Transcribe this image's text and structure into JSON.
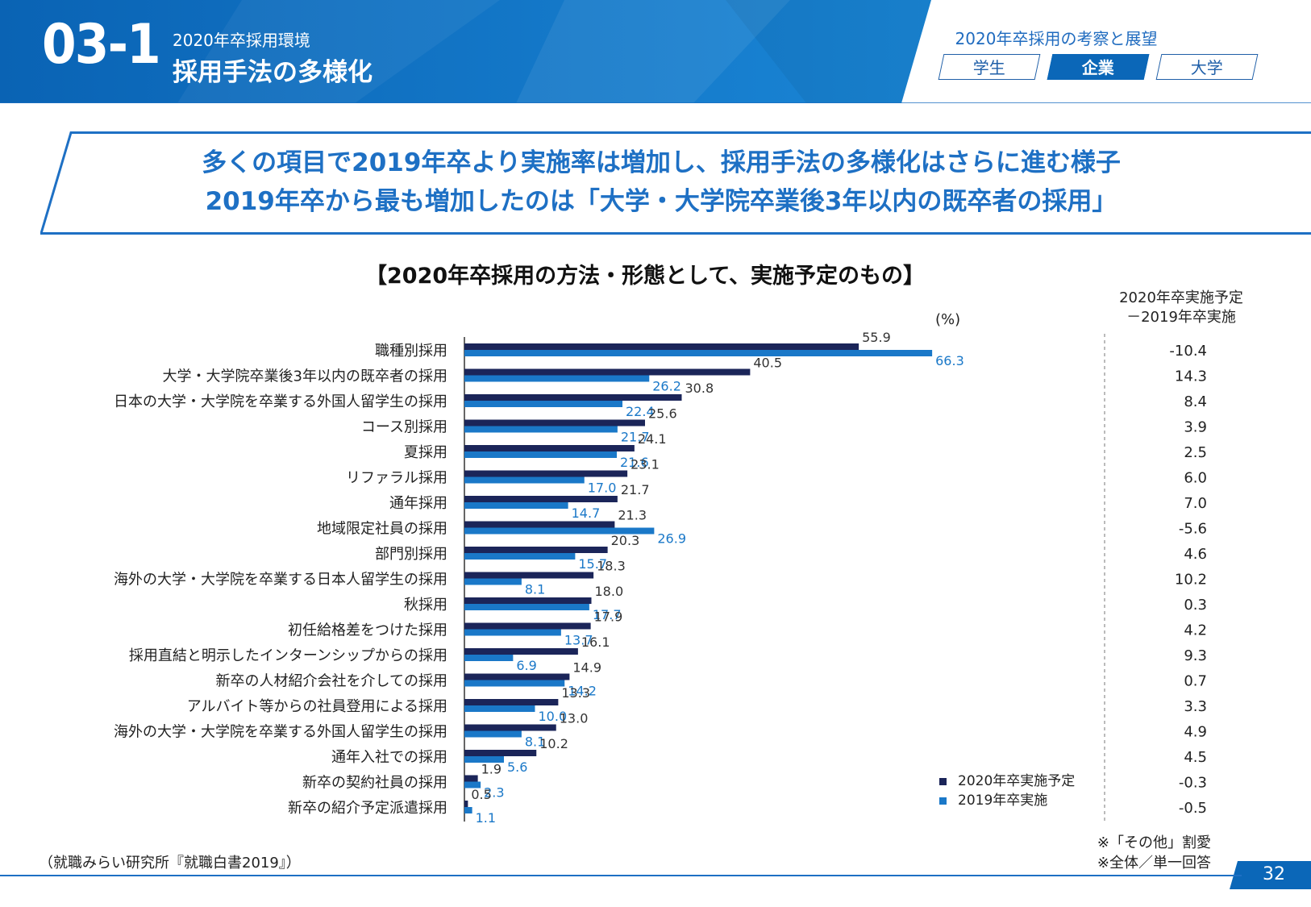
{
  "header": {
    "section_number": "03-1",
    "section_subtitle": "2020年卒採用環境",
    "section_title": "採用手法の多様化",
    "series_title": "2020年卒採用の考察と展望",
    "tabs": [
      {
        "label": "学生",
        "active": false
      },
      {
        "label": "企業",
        "active": true
      },
      {
        "label": "大学",
        "active": false
      }
    ]
  },
  "headline": {
    "line1": "多くの項目で2019年卒より実施率は増加し、採用手法の多様化はさらに進む様子",
    "line2": "2019年卒から最も増加したのは「大学・大学院卒業後3年以内の既卒者の採用」"
  },
  "colors": {
    "series_2020": "#1b2559",
    "series_2019": "#1a78c8",
    "accent": "#1e70c4",
    "banner": "#0b67b8"
  },
  "chart_data": {
    "type": "bar",
    "orientation": "horizontal",
    "title": "【2020年卒採用の方法・形態として、実施予定のもの】",
    "unit": "(%)",
    "diff_header_line1": "2020年卒実施予定",
    "diff_header_line2": "－2019年卒実施",
    "categories": [
      "職種別採用",
      "大学・大学院卒業後3年以内の既卒者の採用",
      "日本の大学・大学院を卒業する外国人留学生の採用",
      "コース別採用",
      "夏採用",
      "リファラル採用",
      "通年採用",
      "地域限定社員の採用",
      "部門別採用",
      "海外の大学・大学院を卒業する日本人留学生の採用",
      "秋採用",
      "初任給格差をつけた採用",
      "採用直結と明示したインターンシップからの採用",
      "新卒の人材紹介会社を介しての採用",
      "アルバイト等からの社員登用による採用",
      "海外の大学・大学院を卒業する外国人留学生の採用",
      "通年入社での採用",
      "新卒の契約社員の採用",
      "新卒の紹介予定派遣採用"
    ],
    "series": [
      {
        "name": "2020年卒実施予定",
        "values": [
          55.9,
          40.5,
          30.8,
          25.6,
          24.1,
          23.1,
          21.7,
          21.3,
          20.3,
          18.3,
          18.0,
          17.9,
          16.1,
          14.9,
          13.3,
          13.0,
          10.2,
          1.9,
          0.5
        ],
        "labels": [
          "55.9",
          "40.5",
          "30.8",
          "25.6",
          "24.1",
          "23.1",
          "21.7",
          "21.3",
          "20.3",
          "18.3",
          "18.0",
          "17.9",
          "16.1",
          "14.9",
          "13.3",
          "13.0",
          "10.2",
          "1.9",
          "0.5"
        ]
      },
      {
        "name": "2019年卒実施",
        "values": [
          66.3,
          26.2,
          22.4,
          21.7,
          21.6,
          17.0,
          14.7,
          26.9,
          15.7,
          8.1,
          17.7,
          13.7,
          6.9,
          14.2,
          10.0,
          8.1,
          5.6,
          2.3,
          1.1
        ],
        "labels": [
          "66.3",
          "26.2",
          "22.4",
          "21.7",
          "21.6",
          "17.0",
          "14.7",
          "26.9",
          "15.7",
          "8.1",
          "17.7",
          "13.7",
          "6.9",
          "14.2",
          "10.0",
          "8.1",
          "5.6",
          "2.3",
          "1.1"
        ]
      }
    ],
    "difference": [
      "-10.4",
      "14.3",
      "8.4",
      "3.9",
      "2.5",
      "6.0",
      "7.0",
      "-5.6",
      "4.6",
      "10.2",
      "0.3",
      "4.2",
      "9.3",
      "0.7",
      "3.3",
      "4.9",
      "4.5",
      "-0.3",
      "-0.5"
    ],
    "legend_position": "bottom-right",
    "grid": false
  },
  "footer": {
    "source": "（就職みらい研究所『就職白書2019』）",
    "note_line1": "※「その他」割愛",
    "note_line2": "※全体／単一回答",
    "page_number": "32"
  }
}
